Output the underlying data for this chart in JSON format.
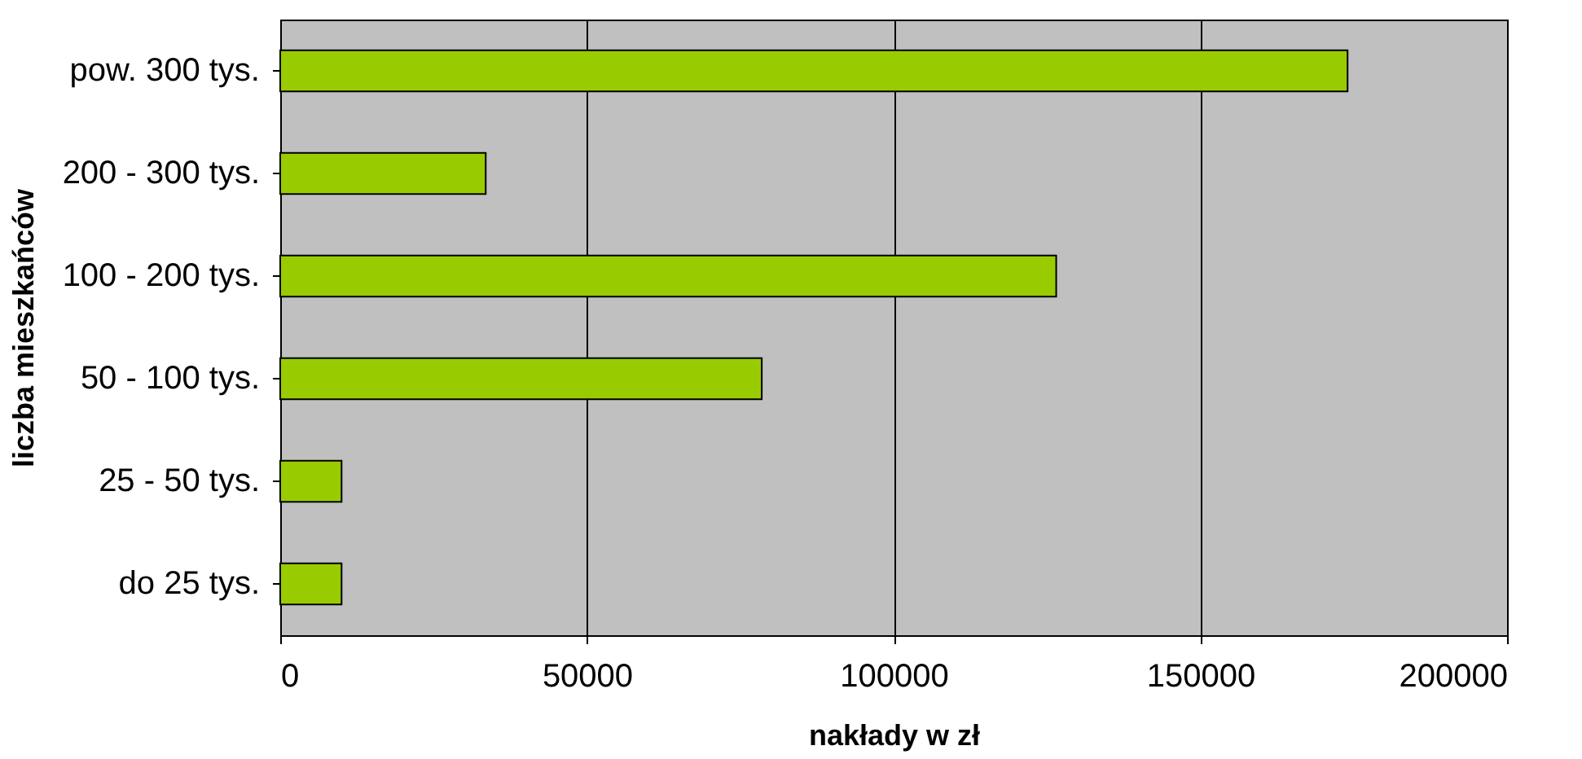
{
  "chart_data": {
    "type": "bar",
    "orientation": "horizontal",
    "categories": [
      "pow. 300 tys.",
      "200 - 300 tys.",
      "100 - 200 tys.",
      "50 - 100 tys.",
      "25 - 50 tys.",
      "do 25 tys."
    ],
    "values": [
      174000,
      33500,
      126500,
      78500,
      10000,
      10000
    ],
    "color": "#99cc00",
    "xlim": [
      0,
      200000
    ],
    "xticks": [
      0,
      50000,
      100000,
      150000,
      200000
    ],
    "xlabel": "nakłady w zł",
    "ylabel": "liczba mieszkańców",
    "grid": "x"
  }
}
